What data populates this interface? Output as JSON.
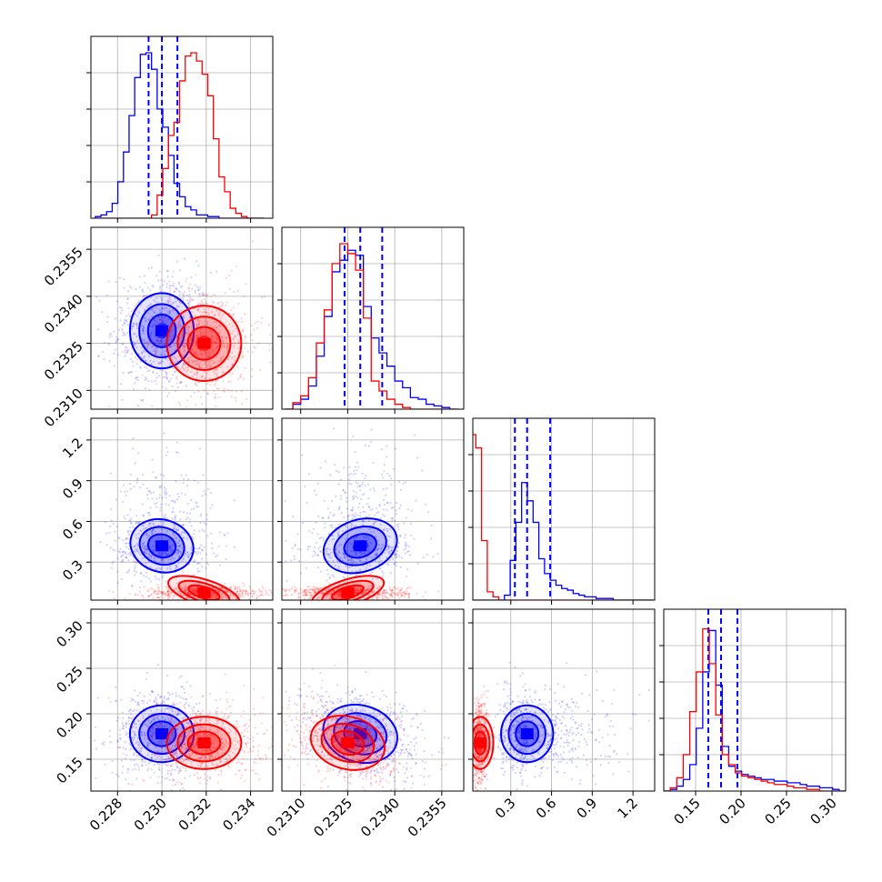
{
  "chart_data": {
    "type": "corner",
    "parameters": 4,
    "grid": true,
    "series": [
      {
        "color": "#0000ff",
        "quantiles_dashed": true,
        "param_stats": [
          {
            "center": 0.23,
            "sigma": 0.0006,
            "quantiles": [
              0.2294,
              0.23,
              0.2307
            ]
          },
          {
            "center": 0.2329,
            "sigma": 0.0005,
            "quantiles": [
              0.2324,
              0.2329,
              0.2336
            ]
          },
          {
            "center": 0.42,
            "sigma": 0.08,
            "quantiles": [
              0.33,
              0.42,
              0.59
            ]
          },
          {
            "center": 0.178,
            "sigma": 0.013,
            "quantiles": [
              0.164,
              0.178,
              0.196
            ]
          }
        ],
        "hist": [
          {
            "edges_from": 0.227,
            "edges_to": 0.2346,
            "bins": 30,
            "heights": [
              0.01,
              0.02,
              0.04,
              0.09,
              0.22,
              0.4,
              0.62,
              0.85,
              0.99,
              1.0,
              0.9,
              0.66,
              0.55,
              0.38,
              0.21,
              0.13,
              0.07,
              0.05,
              0.02,
              0.02,
              0.01,
              0.01,
              0.0,
              0.0,
              0.0,
              0.0,
              0.0,
              0.0,
              0.0,
              0.0
            ]
          },
          {
            "edges_from": 0.2305,
            "edges_to": 0.236,
            "bins": 22,
            "heights": [
              0.0,
              0.03,
              0.06,
              0.14,
              0.32,
              0.56,
              0.83,
              0.9,
              0.96,
              0.93,
              0.62,
              0.43,
              0.34,
              0.26,
              0.17,
              0.13,
              0.07,
              0.06,
              0.03,
              0.02,
              0.01,
              0.0
            ]
          },
          {
            "edges_from": 0.0,
            "edges_to": 1.35,
            "bins": 32,
            "heights": [
              0.0,
              0.0,
              0.0,
              0.0,
              0.0,
              0.0,
              0.03,
              0.24,
              0.47,
              0.71,
              0.6,
              0.47,
              0.25,
              0.16,
              0.12,
              0.09,
              0.07,
              0.06,
              0.04,
              0.03,
              0.02,
              0.02,
              0.01,
              0.01,
              0.01,
              0.0,
              0.0,
              0.0,
              0.0,
              0.0,
              0.0,
              0.0
            ]
          },
          {
            "edges_from": 0.115,
            "edges_to": 0.315,
            "bins": 28,
            "heights": [
              0.0,
              0.01,
              0.03,
              0.07,
              0.16,
              0.38,
              0.72,
              0.97,
              0.64,
              0.27,
              0.15,
              0.12,
              0.1,
              0.09,
              0.08,
              0.07,
              0.07,
              0.06,
              0.06,
              0.05,
              0.05,
              0.04,
              0.03,
              0.03,
              0.02,
              0.02,
              0.01,
              0.0
            ]
          }
        ]
      },
      {
        "color": "#ff0000",
        "quantiles_dashed": false,
        "param_stats": [
          {
            "center": 0.2319,
            "sigma": 0.0007
          },
          {
            "center": 0.2325,
            "sigma": 0.0005
          },
          {
            "center": 0.075,
            "sigma": 0.04
          },
          {
            "center": 0.168,
            "sigma": 0.012
          }
        ],
        "hist": [
          {
            "edges_from": 0.227,
            "edges_to": 0.2346,
            "bins": 30,
            "heights": [
              0.0,
              0.0,
              0.0,
              0.0,
              0.0,
              0.0,
              0.0,
              0.0,
              0.0,
              0.0,
              0.02,
              0.14,
              0.3,
              0.5,
              0.58,
              0.83,
              0.98,
              1.0,
              0.95,
              0.87,
              0.74,
              0.48,
              0.25,
              0.16,
              0.06,
              0.03,
              0.01,
              0.0,
              0.0,
              0.0
            ]
          },
          {
            "edges_from": 0.2305,
            "edges_to": 0.236,
            "bins": 22,
            "heights": [
              0.0,
              0.04,
              0.08,
              0.19,
              0.4,
              0.6,
              0.88,
              1.0,
              0.94,
              0.84,
              0.55,
              0.17,
              0.11,
              0.06,
              0.03,
              0.01,
              0.0,
              0.0,
              0.0,
              0.0,
              0.0,
              0.0
            ]
          },
          {
            "edges_from": 0.0,
            "edges_to": 1.35,
            "bins": 32,
            "heights": [
              1.0,
              0.92,
              0.36,
              0.05,
              0.02,
              0.0,
              0.0,
              0.0,
              0.0,
              0.0,
              0.0,
              0.0,
              0.0,
              0.0,
              0.0,
              0.0,
              0.0,
              0.0,
              0.0,
              0.0,
              0.0,
              0.0,
              0.0,
              0.0,
              0.0,
              0.0,
              0.0,
              0.0,
              0.0,
              0.0,
              0.0,
              0.0
            ]
          },
          {
            "edges_from": 0.115,
            "edges_to": 0.315,
            "bins": 28,
            "heights": [
              0.0,
              0.02,
              0.08,
              0.22,
              0.48,
              0.72,
              0.98,
              0.77,
              0.46,
              0.22,
              0.16,
              0.11,
              0.09,
              0.08,
              0.07,
              0.06,
              0.05,
              0.04,
              0.04,
              0.03,
              0.02,
              0.02,
              0.01,
              0.01,
              0.0,
              0.0,
              0.0,
              0.0
            ]
          }
        ]
      }
    ],
    "axes": [
      {
        "lim": [
          0.2268,
          0.235
        ],
        "ticks": [
          0.228,
          0.23,
          0.232,
          0.234
        ],
        "tick_labels": [
          "0.228",
          "0.230",
          "0.232",
          "0.234"
        ]
      },
      {
        "lim": [
          0.2304,
          0.2362
        ],
        "ticks": [
          0.231,
          0.2325,
          0.234,
          0.2355
        ],
        "tick_labels": [
          "0.2310",
          "0.2325",
          "0.2340",
          "0.2355"
        ]
      },
      {
        "lim": [
          0.02,
          1.36
        ],
        "ticks": [
          0.3,
          0.6,
          0.9,
          1.2
        ],
        "tick_labels": [
          "0.3",
          "0.6",
          "0.9",
          "1.2"
        ]
      },
      {
        "lim": [
          0.115,
          0.315
        ],
        "ticks": [
          0.15,
          0.2,
          0.25,
          0.3
        ],
        "tick_labels": [
          "0.15",
          "0.20",
          "0.25",
          "0.30"
        ]
      }
    ]
  }
}
